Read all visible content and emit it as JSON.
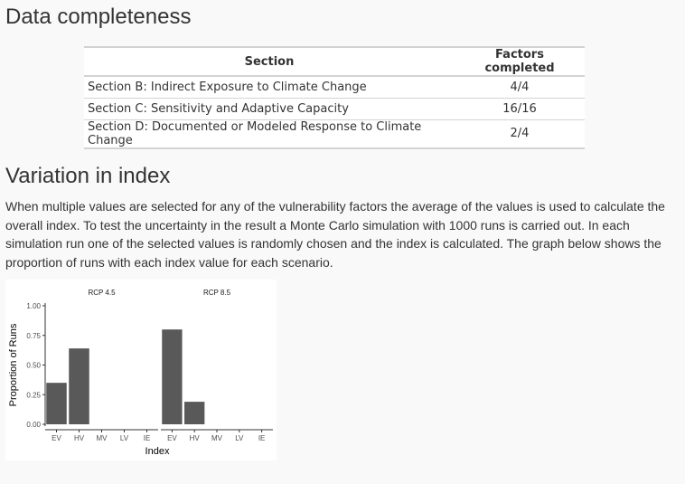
{
  "headings": {
    "data_completeness": "Data completeness",
    "variation_in_index": "Variation in index"
  },
  "table": {
    "columns": [
      "Section",
      "Factors completed"
    ],
    "rows": [
      [
        "Section B: Indirect Exposure to Climate Change",
        "4/4"
      ],
      [
        "Section C: Sensitivity and Adaptive Capacity",
        "16/16"
      ],
      [
        "Section D: Documented or Modeled Response to Climate Change",
        "2/4"
      ]
    ]
  },
  "paragraph": "When multiple values are selected for any of the vulnerability factors the average of the values is used to calculate the overall index. To test the uncertainty in the result a Monte Carlo simulation with 1000 runs is carried out. In each simulation run one of the selected values is randomly chosen and the index is calculated. The graph below shows the proportion of runs with each index value for each scenario.",
  "chart_data": {
    "type": "bar",
    "xlabel": "Index",
    "ylabel": "Proportion of Runs",
    "categories": [
      "EV",
      "HV",
      "MV",
      "LV",
      "IE"
    ],
    "ylim": [
      0,
      1
    ],
    "yticks": [
      0,
      0.25,
      0.5,
      0.75,
      1
    ],
    "ytick_labels": [
      "0.00",
      "0.25",
      "0.50",
      "0.75",
      "1.00"
    ],
    "grid": false,
    "bar_color": "#595959",
    "panels": [
      {
        "name": "RCP 4.5",
        "values": [
          0.35,
          0.64,
          0,
          0,
          0
        ]
      },
      {
        "name": "RCP 8.5",
        "values": [
          0.8,
          0.19,
          0,
          0,
          0
        ]
      }
    ]
  }
}
